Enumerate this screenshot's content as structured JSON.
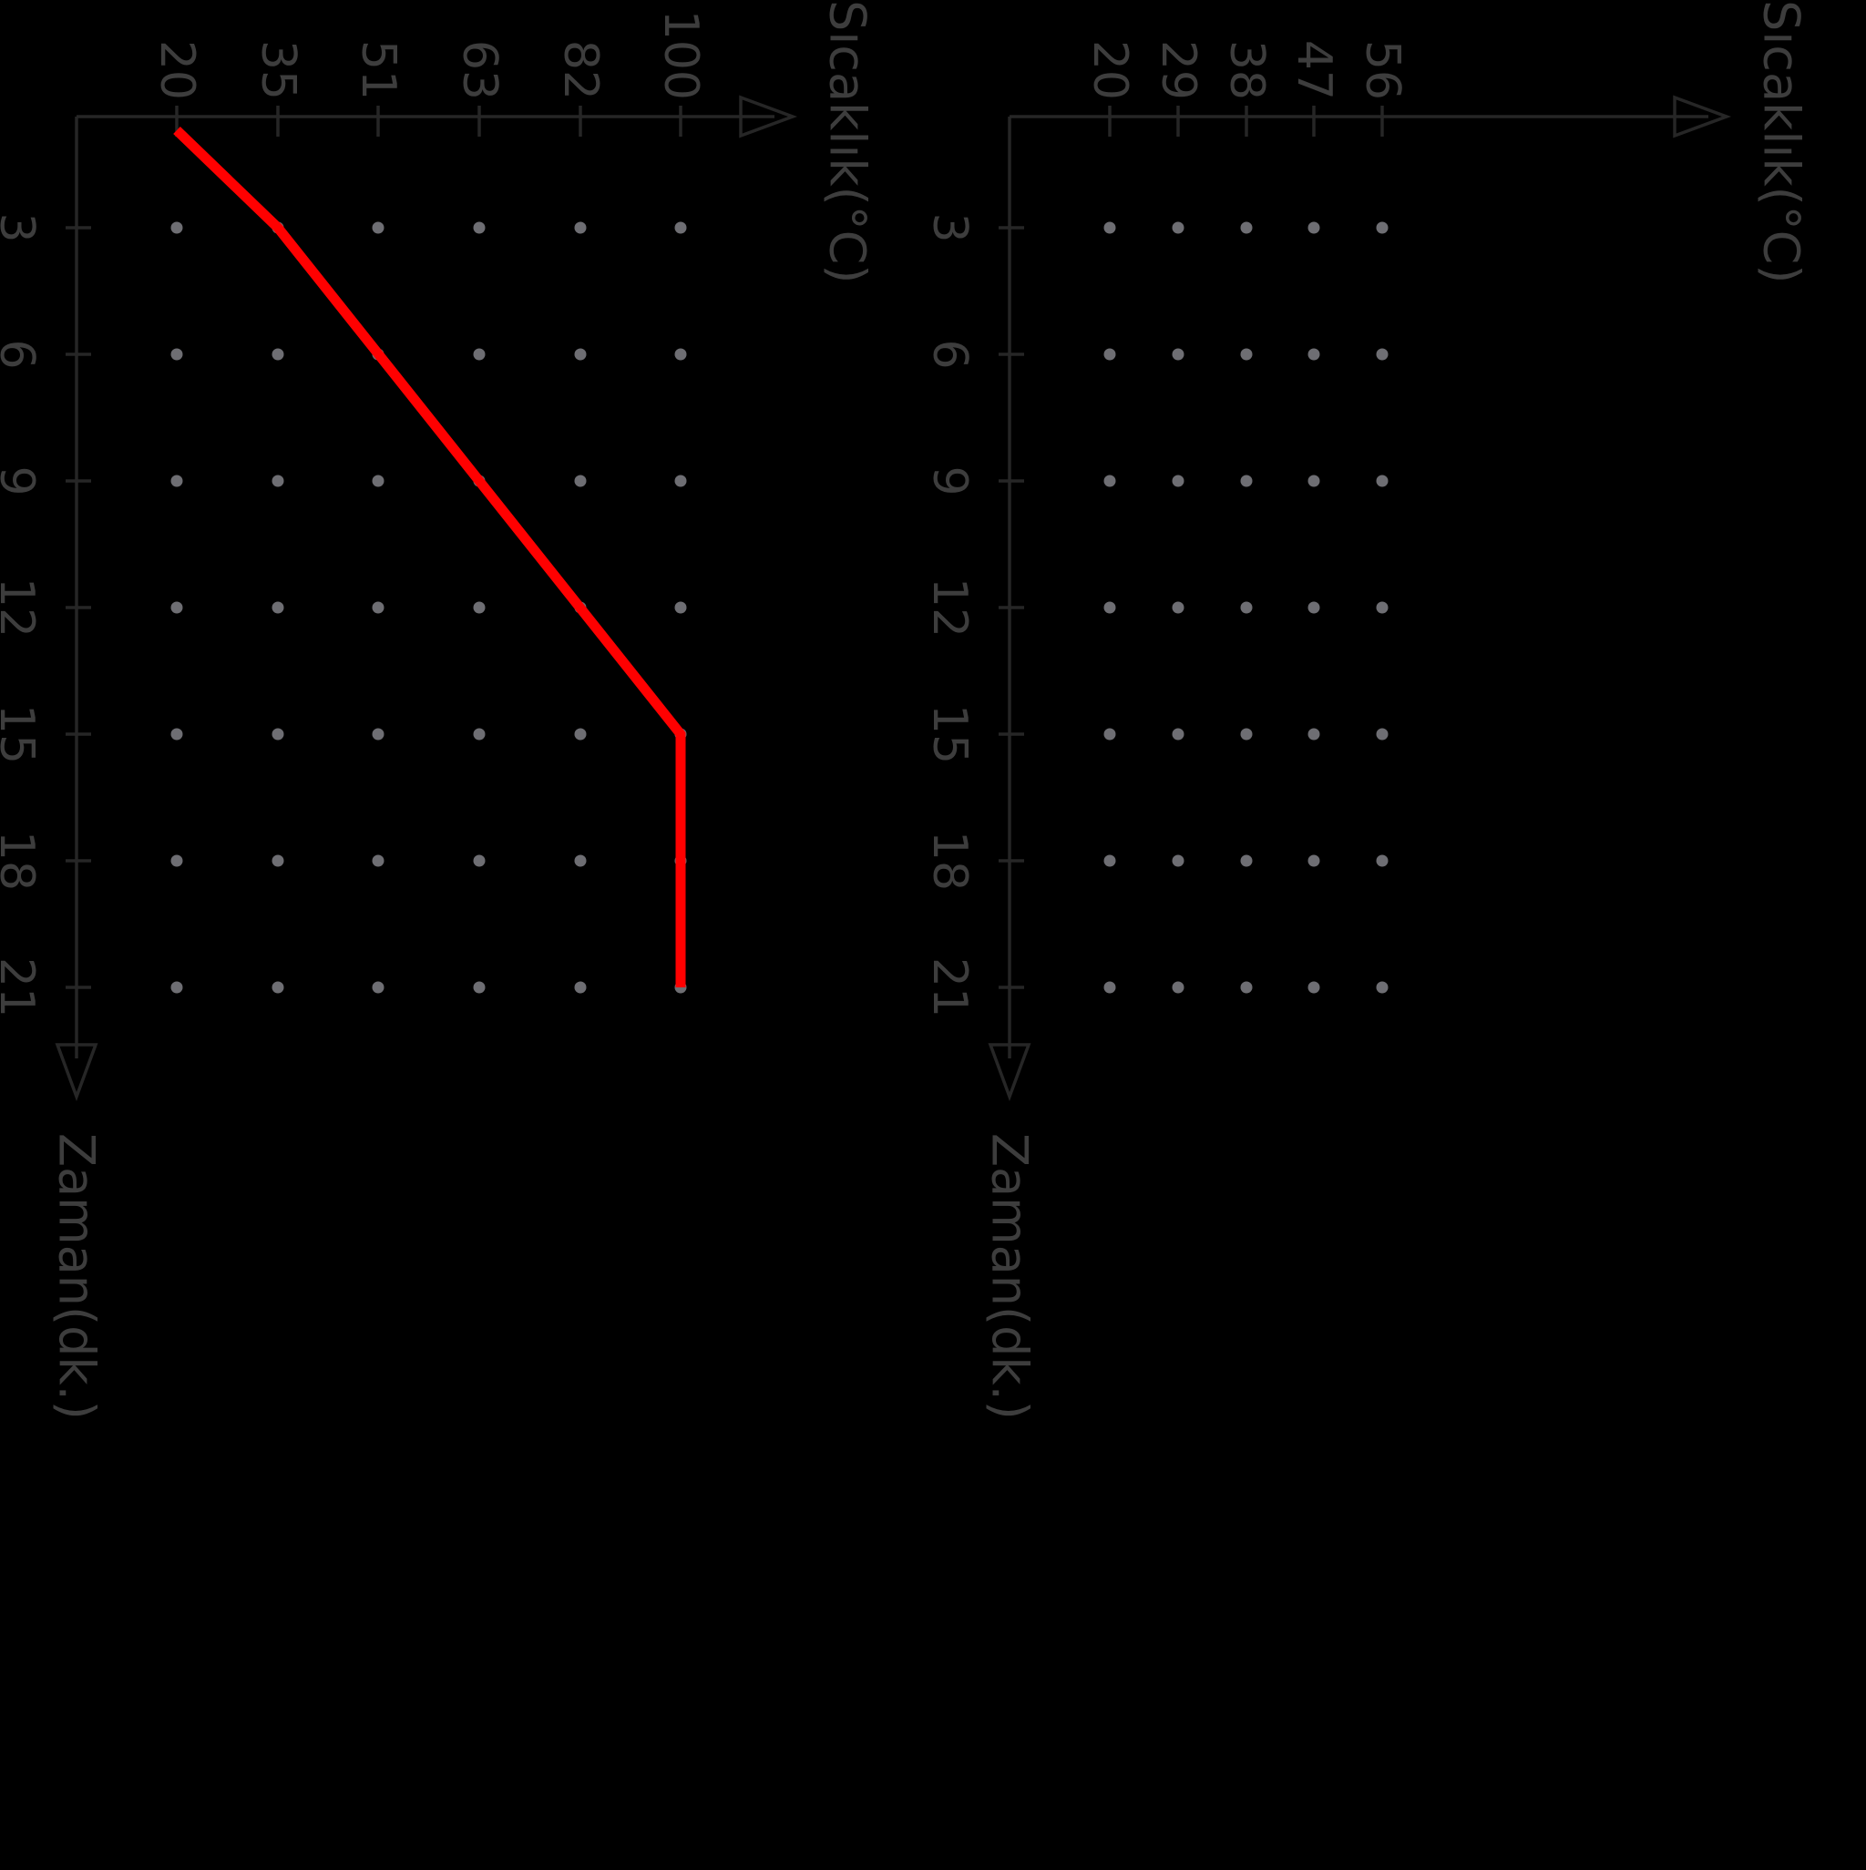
{
  "chart_data": [
    {
      "type": "line",
      "orientation": "rotated-90",
      "title": "",
      "xlabel": "Zaman(dk.)",
      "ylabel": "Sıcaklık(°C)",
      "x_ticks": [
        3,
        6,
        9,
        12,
        15,
        18,
        21
      ],
      "y_ticks": [
        20,
        35,
        51,
        63,
        82,
        100
      ],
      "xlim": [
        0,
        21
      ],
      "ylim": [
        20,
        100
      ],
      "grid": "dots",
      "series": [
        {
          "x": [
            0,
            3,
            15,
            21
          ],
          "y": [
            20,
            35,
            100,
            100
          ],
          "color": "#ff0000"
        }
      ]
    },
    {
      "type": "line",
      "orientation": "rotated-90",
      "title": "",
      "xlabel": "Zaman(dk.)",
      "ylabel": "Sıcaklık(°C)",
      "x_ticks": [
        3,
        6,
        9,
        12,
        15,
        18,
        21
      ],
      "y_ticks": [
        20,
        29,
        38,
        47,
        56
      ],
      "xlim": [
        0,
        21
      ],
      "ylim": [
        20,
        56
      ],
      "grid": "dots",
      "series": []
    }
  ],
  "colors": {
    "background": "#000000",
    "axis": "#262626",
    "label": "#3d3d3d",
    "grid_dot": "#6e6e73",
    "line": "#ff0000"
  }
}
